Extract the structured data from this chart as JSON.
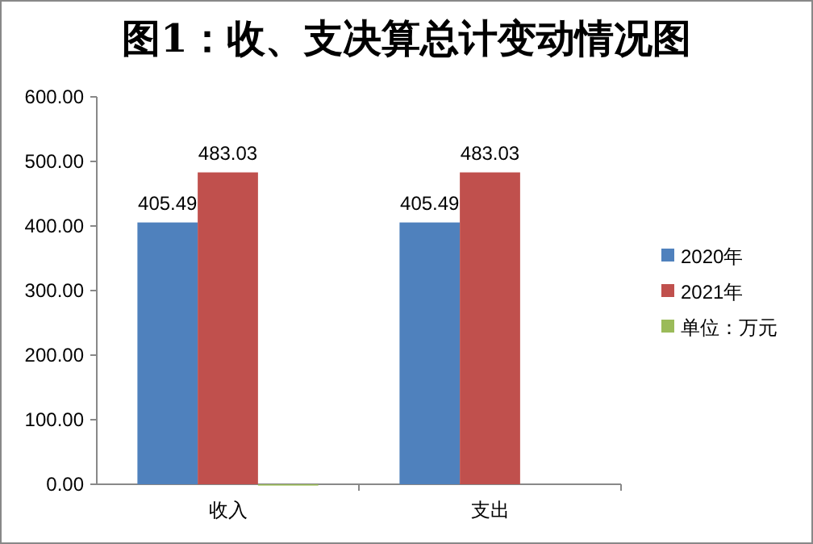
{
  "chart_data": {
    "type": "bar",
    "title": "图1：收、支决算总计变动情况图",
    "categories": [
      "收入",
      "支出"
    ],
    "series": [
      {
        "name": "2020年",
        "color": "#4f81bd",
        "values": [
          405.49,
          405.49
        ]
      },
      {
        "name": "2021年",
        "color": "#c0504d",
        "values": [
          483.03,
          483.03
        ]
      },
      {
        "name": "单位：万元",
        "color": "#9bbb59",
        "values": [
          0,
          null
        ]
      }
    ],
    "ylim": [
      0,
      600
    ],
    "yticks": [
      {
        "value": 0,
        "label": "0.00"
      },
      {
        "value": 100,
        "label": "100.00"
      },
      {
        "value": 200,
        "label": "200.00"
      },
      {
        "value": 300,
        "label": "300.00"
      },
      {
        "value": 400,
        "label": "400.00"
      },
      {
        "value": 500,
        "label": "500.00"
      },
      {
        "value": 600,
        "label": "600.00"
      }
    ],
    "value_labels": [
      [
        "405.49",
        "405.49"
      ],
      [
        "483.03",
        "483.03"
      ],
      [
        null,
        null
      ]
    ],
    "grid": false,
    "legend": "right"
  }
}
